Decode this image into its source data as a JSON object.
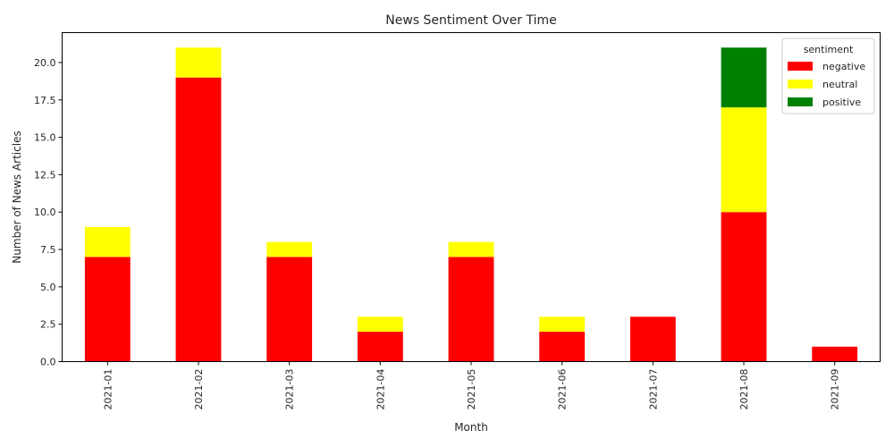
{
  "chart_data": {
    "type": "bar",
    "stacked": true,
    "title": "News Sentiment Over Time",
    "xlabel": "Month",
    "ylabel": "Number of News Articles",
    "categories": [
      "2021-01",
      "2021-02",
      "2021-03",
      "2021-04",
      "2021-05",
      "2021-06",
      "2021-07",
      "2021-08",
      "2021-09"
    ],
    "ylim": [
      0,
      22
    ],
    "yticks": [
      "0.0",
      "2.5",
      "5.0",
      "7.5",
      "10.0",
      "12.5",
      "15.0",
      "17.5",
      "20.0"
    ],
    "legend": {
      "title": "sentiment",
      "placement": "top-right"
    },
    "series": [
      {
        "name": "negative",
        "color": "#ff0000",
        "values": [
          7,
          19,
          7,
          2,
          7,
          2,
          3,
          10,
          1
        ]
      },
      {
        "name": "neutral",
        "color": "#ffff00",
        "values": [
          2,
          2,
          1,
          1,
          1,
          1,
          0,
          7,
          0
        ]
      },
      {
        "name": "positive",
        "color": "#008000",
        "values": [
          0,
          0,
          0,
          0,
          0,
          0,
          0,
          4,
          0
        ]
      }
    ],
    "grid": false
  }
}
